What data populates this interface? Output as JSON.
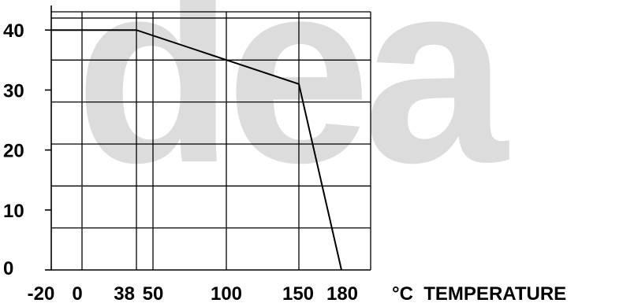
{
  "watermark": "dea",
  "chart_data": {
    "type": "line",
    "x": [
      -20,
      38,
      150,
      180
    ],
    "y": [
      40,
      40,
      31,
      0
    ],
    "xlim": [
      -20,
      202
    ],
    "ylim": [
      0,
      43
    ],
    "x_ticks": [
      -20,
      0,
      38,
      50,
      100,
      150,
      180
    ],
    "x_tick_labels": [
      "-20",
      "0",
      "38",
      "50",
      "100",
      "150",
      "180"
    ],
    "y_ticks": [
      0,
      10,
      20,
      30,
      40
    ],
    "y_tick_labels": [
      "0",
      "10",
      "20",
      "30",
      "40"
    ],
    "x_grid": [
      0,
      38,
      50,
      100,
      150
    ],
    "y_grid": [
      7,
      14,
      21,
      28,
      35,
      42
    ],
    "xlabel": "°C  TEMPERATURE",
    "ylabel": "",
    "title": "",
    "grid": true,
    "series_color": "#000000",
    "grid_color": "#000000"
  }
}
